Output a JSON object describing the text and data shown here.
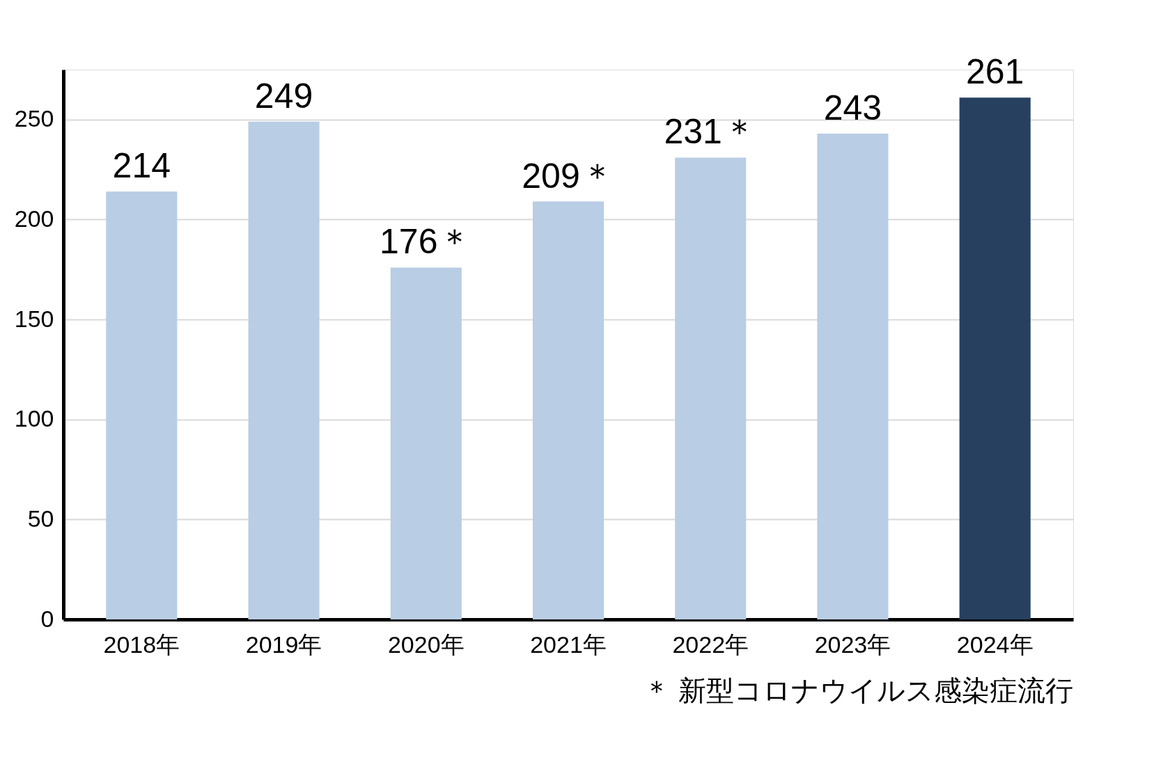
{
  "chart_data": {
    "type": "bar",
    "categories": [
      "2018年",
      "2019年",
      "2020年",
      "2021年",
      "2022年",
      "2023年",
      "2024年"
    ],
    "values": [
      214,
      249,
      176,
      209,
      231,
      243,
      261
    ],
    "colors": [
      "#b9cde4",
      "#b9cde4",
      "#b9cde4",
      "#b9cde4",
      "#b9cde4",
      "#b9cde4",
      "#27405f"
    ],
    "value_labels": [
      "214",
      "249",
      "176＊",
      "209＊",
      "231＊",
      "243",
      "261"
    ],
    "ylim": [
      0,
      275
    ],
    "yticks": [
      0,
      50,
      100,
      150,
      200,
      250
    ],
    "grid": "y",
    "annotations": [
      "＊ 新型コロナウイルス感染症流行"
    ]
  }
}
